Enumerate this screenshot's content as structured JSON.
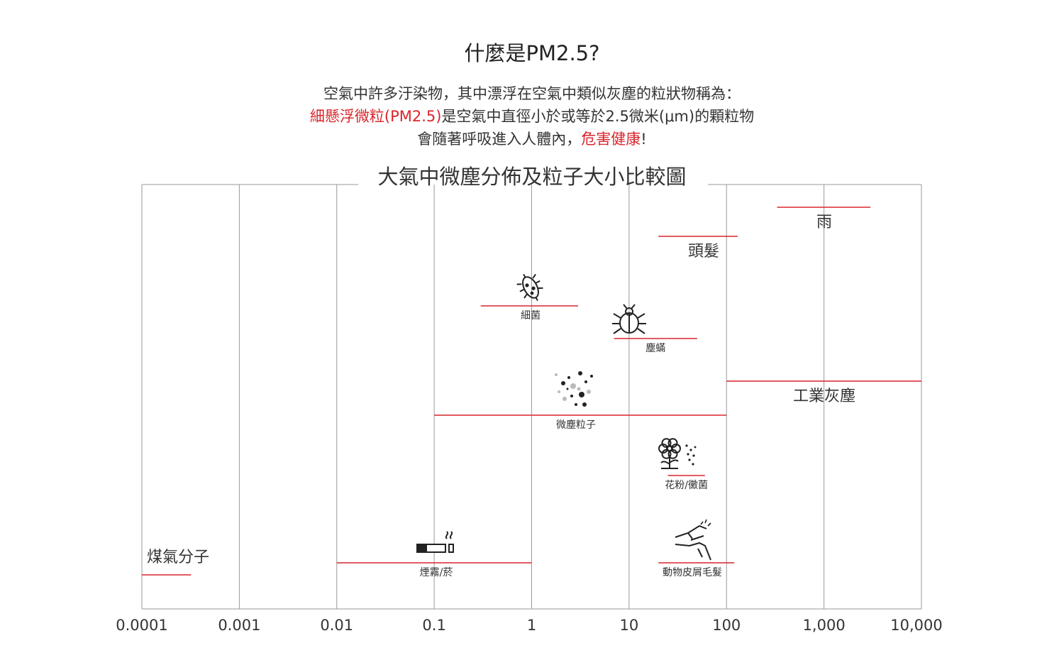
{
  "title": "什麼是PM2.5?",
  "intro": {
    "line1": "空氣中許多汙染物，其中漂浮在空氣中類似灰塵的粒狀物稱為：",
    "line2_red": "細懸浮微粒(PM2.5)",
    "line2_rest": "是空氣中直徑小於或等於2.5微米(μm)的顆粒物",
    "line3_start": "會隨著呼吸進入人體內，",
    "line3_red": "危害健康",
    "line3_end": "!"
  },
  "colors": {
    "accent": "#d9252b",
    "grid": "#9a9a9a",
    "text": "#333333",
    "icon": "#222222"
  },
  "chart_data": {
    "type": "range",
    "title": "大氣中微塵分佈及粒子大小比較圖",
    "x_scale": "log",
    "x_ticks": [
      {
        "value": 0.0001,
        "label": "0.0001"
      },
      {
        "value": 0.001,
        "label": "0.001"
      },
      {
        "value": 0.01,
        "label": "0.01"
      },
      {
        "value": 0.1,
        "label": "0.1"
      },
      {
        "value": 1,
        "label": "1"
      },
      {
        "value": 10,
        "label": "10"
      },
      {
        "value": 100,
        "label": "100"
      },
      {
        "value": 1000,
        "label": "1,000"
      },
      {
        "value": 10000,
        "label": "10,000"
      }
    ],
    "xlim": [
      0.0001,
      10000
    ],
    "grid": true,
    "items": [
      {
        "label": "雨",
        "min": 330,
        "max": 3000,
        "row": 1,
        "size": "large",
        "icon": null
      },
      {
        "label": "頭髮",
        "min": 20,
        "max": 130,
        "row": 2,
        "size": "large",
        "icon": null
      },
      {
        "label": "細菌",
        "min": 0.3,
        "max": 3,
        "row": 3,
        "size": "small",
        "icon": "bacteria-icon"
      },
      {
        "label": "塵蟎",
        "min": 7,
        "max": 50,
        "row": 4,
        "size": "small",
        "icon": "dust-mite-icon"
      },
      {
        "label": "工業灰塵",
        "min": 100,
        "max": 10000,
        "row": 5,
        "size": "large",
        "icon": null
      },
      {
        "label": "微塵粒子",
        "min": 0.1,
        "max": 100,
        "row": 6,
        "size": "small",
        "icon": "dust-particles-icon"
      },
      {
        "label": "花粉/黴菌",
        "min": 25,
        "max": 60,
        "row": 7,
        "size": "small",
        "icon": "flower-pollen-icon"
      },
      {
        "label": "煙霧/菸",
        "min": 0.01,
        "max": 1,
        "row": 8,
        "size": "small",
        "icon": "cigarette-smoke-icon"
      },
      {
        "label": "動物皮屑毛髮",
        "min": 20,
        "max": 120,
        "row": 8,
        "size": "small",
        "icon": "hand-pet-icon"
      },
      {
        "label": "煤氣分子",
        "min": 0.0001,
        "max": 0.00032,
        "row": 9,
        "size": "large",
        "icon": null
      }
    ]
  }
}
